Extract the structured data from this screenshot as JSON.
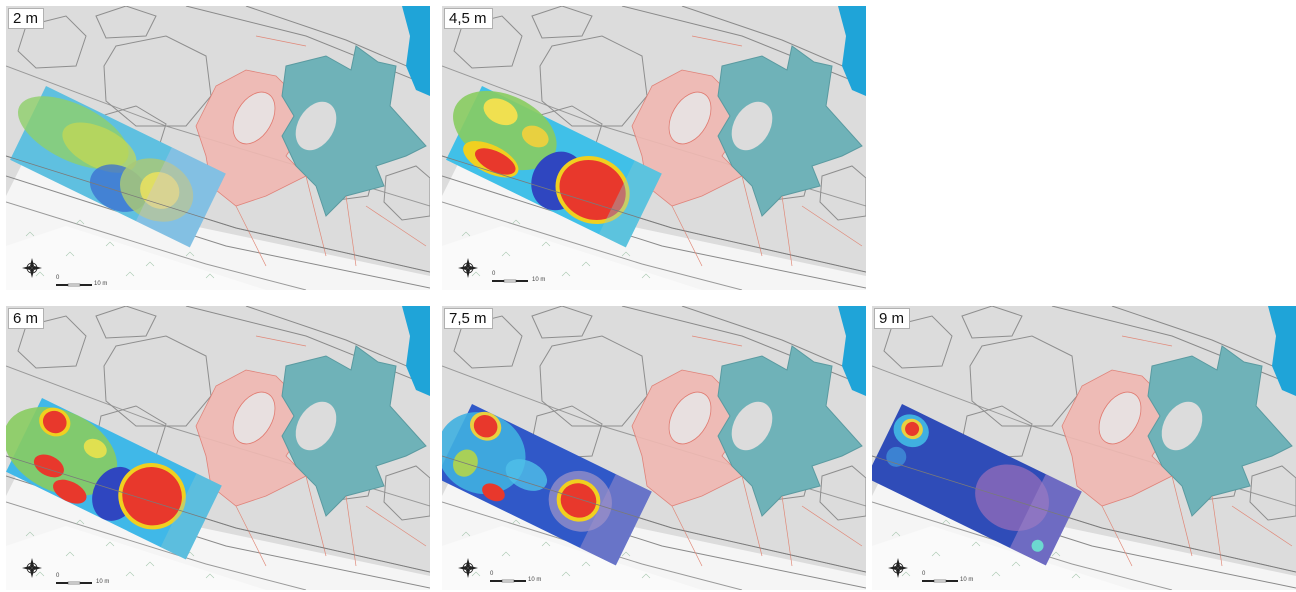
{
  "figure": {
    "panels": [
      {
        "depth_label": "2 m",
        "scale_zero": "0",
        "scale_end": "10 m"
      },
      {
        "depth_label": "4,5 m",
        "scale_zero": "0",
        "scale_end": "10 m"
      },
      {
        "depth_label": "6 m",
        "scale_zero": "0",
        "scale_end": "10 m"
      },
      {
        "depth_label": "7,5 m",
        "scale_zero": "0",
        "scale_end": "10 m"
      },
      {
        "depth_label": "9 m",
        "scale_zero": "0",
        "scale_end": "10 m"
      }
    ],
    "colors": {
      "background": "#dcdcdc",
      "sea": "#1fa4d8",
      "teal_feature": "#6fb2b8",
      "pink_feature": "#f0b8b2",
      "outline": "#8e8e8e",
      "anomaly_high": "#e8382c",
      "anomaly_mid": "#f0d020",
      "anomaly_low": "#3448b8"
    },
    "icons": [
      "north-arrow-compass-icon",
      "scale-bar"
    ]
  }
}
